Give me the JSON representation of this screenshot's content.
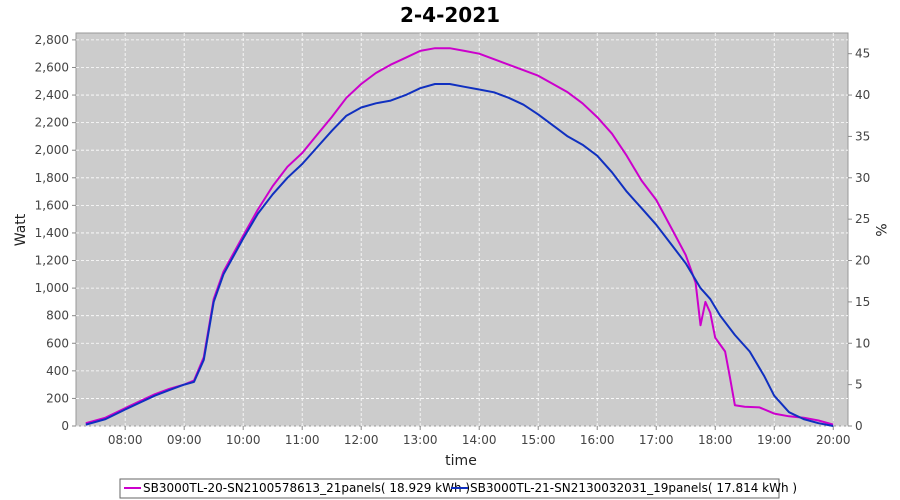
{
  "chart_data": {
    "type": "line",
    "title": "2-4-2021",
    "xlabel": "time",
    "ylabel": "Watt",
    "y2label": "%",
    "xlim": [
      "07:10",
      "20:15"
    ],
    "ylim": [
      0,
      2850
    ],
    "y2lim": [
      0,
      47.5
    ],
    "x_ticks": [
      "08:00",
      "09:00",
      "10:00",
      "11:00",
      "12:00",
      "13:00",
      "14:00",
      "15:00",
      "16:00",
      "17:00",
      "18:00",
      "19:00",
      "20:00"
    ],
    "y_ticks": [
      "0",
      "200",
      "400",
      "600",
      "800",
      "1,000",
      "1,200",
      "1,400",
      "1,600",
      "1,800",
      "2,000",
      "2,200",
      "2,400",
      "2,600",
      "2,800"
    ],
    "y2_ticks": [
      "0",
      "5",
      "10",
      "15",
      "20",
      "25",
      "30",
      "35",
      "40",
      "45"
    ],
    "grid": true,
    "legend_position": "bottom",
    "series": [
      {
        "name": "SB3000TL-20-SN2100578613_21panels( 18.929 kWh )",
        "color": "#cc00cc",
        "x": [
          "07:20",
          "07:40",
          "08:00",
          "08:15",
          "08:30",
          "08:45",
          "09:00",
          "09:10",
          "09:20",
          "09:30",
          "09:40",
          "10:00",
          "10:15",
          "10:30",
          "10:45",
          "11:00",
          "11:15",
          "11:30",
          "11:45",
          "12:00",
          "12:15",
          "12:30",
          "12:45",
          "13:00",
          "13:15",
          "13:30",
          "13:45",
          "14:00",
          "14:15",
          "14:30",
          "14:45",
          "15:00",
          "15:15",
          "15:30",
          "15:45",
          "16:00",
          "16:15",
          "16:30",
          "16:45",
          "17:00",
          "17:15",
          "17:30",
          "17:40",
          "17:45",
          "17:50",
          "17:55",
          "18:00",
          "18:10",
          "18:15",
          "18:20",
          "18:30",
          "18:45",
          "19:00",
          "19:15",
          "19:30",
          "19:45",
          "20:00"
        ],
        "values": [
          20,
          60,
          130,
          180,
          230,
          270,
          300,
          330,
          500,
          920,
          1120,
          1380,
          1570,
          1740,
          1880,
          1980,
          2110,
          2240,
          2380,
          2480,
          2560,
          2620,
          2670,
          2720,
          2740,
          2740,
          2720,
          2700,
          2660,
          2620,
          2580,
          2540,
          2480,
          2420,
          2340,
          2240,
          2120,
          1960,
          1780,
          1640,
          1440,
          1240,
          1040,
          730,
          900,
          820,
          640,
          540,
          350,
          150,
          140,
          135,
          90,
          70,
          60,
          40,
          10
        ]
      },
      {
        "name": "SB3000TL-21-SN2130032031_19panels( 17.814 kWh )",
        "color": "#1030c0",
        "x": [
          "07:20",
          "07:40",
          "08:00",
          "08:15",
          "08:30",
          "08:45",
          "09:00",
          "09:10",
          "09:20",
          "09:30",
          "09:40",
          "10:00",
          "10:15",
          "10:30",
          "10:45",
          "11:00",
          "11:15",
          "11:30",
          "11:45",
          "12:00",
          "12:15",
          "12:30",
          "12:45",
          "13:00",
          "13:15",
          "13:30",
          "13:45",
          "14:00",
          "14:15",
          "14:30",
          "14:45",
          "15:00",
          "15:15",
          "15:30",
          "15:45",
          "16:00",
          "16:15",
          "16:30",
          "16:45",
          "17:00",
          "17:15",
          "17:30",
          "17:45",
          "17:55",
          "18:05",
          "18:20",
          "18:35",
          "18:50",
          "19:00",
          "19:15",
          "19:30",
          "19:45",
          "20:00"
        ],
        "values": [
          10,
          50,
          120,
          170,
          220,
          260,
          300,
          320,
          480,
          900,
          1100,
          1360,
          1540,
          1680,
          1800,
          1900,
          2020,
          2140,
          2250,
          2310,
          2340,
          2360,
          2400,
          2450,
          2480,
          2480,
          2460,
          2440,
          2420,
          2380,
          2330,
          2260,
          2180,
          2100,
          2040,
          1960,
          1840,
          1700,
          1580,
          1460,
          1320,
          1180,
          1000,
          920,
          800,
          660,
          540,
          360,
          220,
          100,
          50,
          20,
          0
        ]
      }
    ]
  }
}
